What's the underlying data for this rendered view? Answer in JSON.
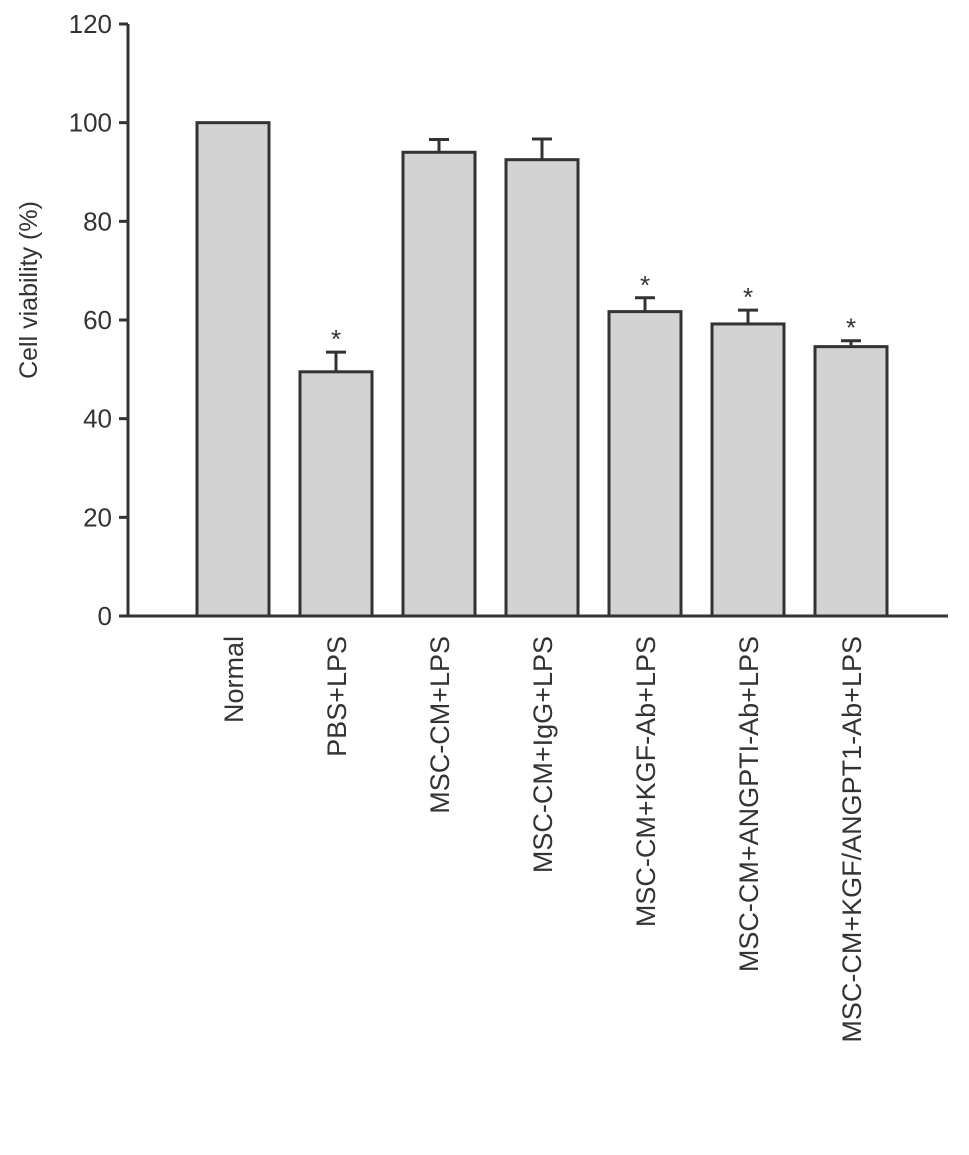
{
  "chart_data": {
    "type": "bar",
    "title": "",
    "xlabel": "",
    "ylabel": "Cell viability (%)",
    "ylim": [
      0,
      120
    ],
    "yticks": [
      0,
      20,
      40,
      60,
      80,
      100,
      120
    ],
    "grid": false,
    "categories": [
      "Normal",
      "PBS+LPS",
      "MSC-CM+LPS",
      "MSC-CM+IgG+LPS",
      "MSC-CM+KGF-Ab+LPS",
      "MSC-CM+ANGPTI-Ab+LPS",
      "MSC-CM+KGF/ANGPT1-Ab+LPS"
    ],
    "values": [
      100,
      49.5,
      94,
      92.5,
      61.7,
      59.2,
      54.6
    ],
    "errors": [
      0,
      4,
      2.6,
      4.2,
      2.8,
      2.8,
      1.2
    ],
    "significance": [
      "",
      "*",
      "",
      "",
      "*",
      "*",
      "*"
    ],
    "bar_color": "#d3d3d3",
    "edge_color": "#333333"
  }
}
